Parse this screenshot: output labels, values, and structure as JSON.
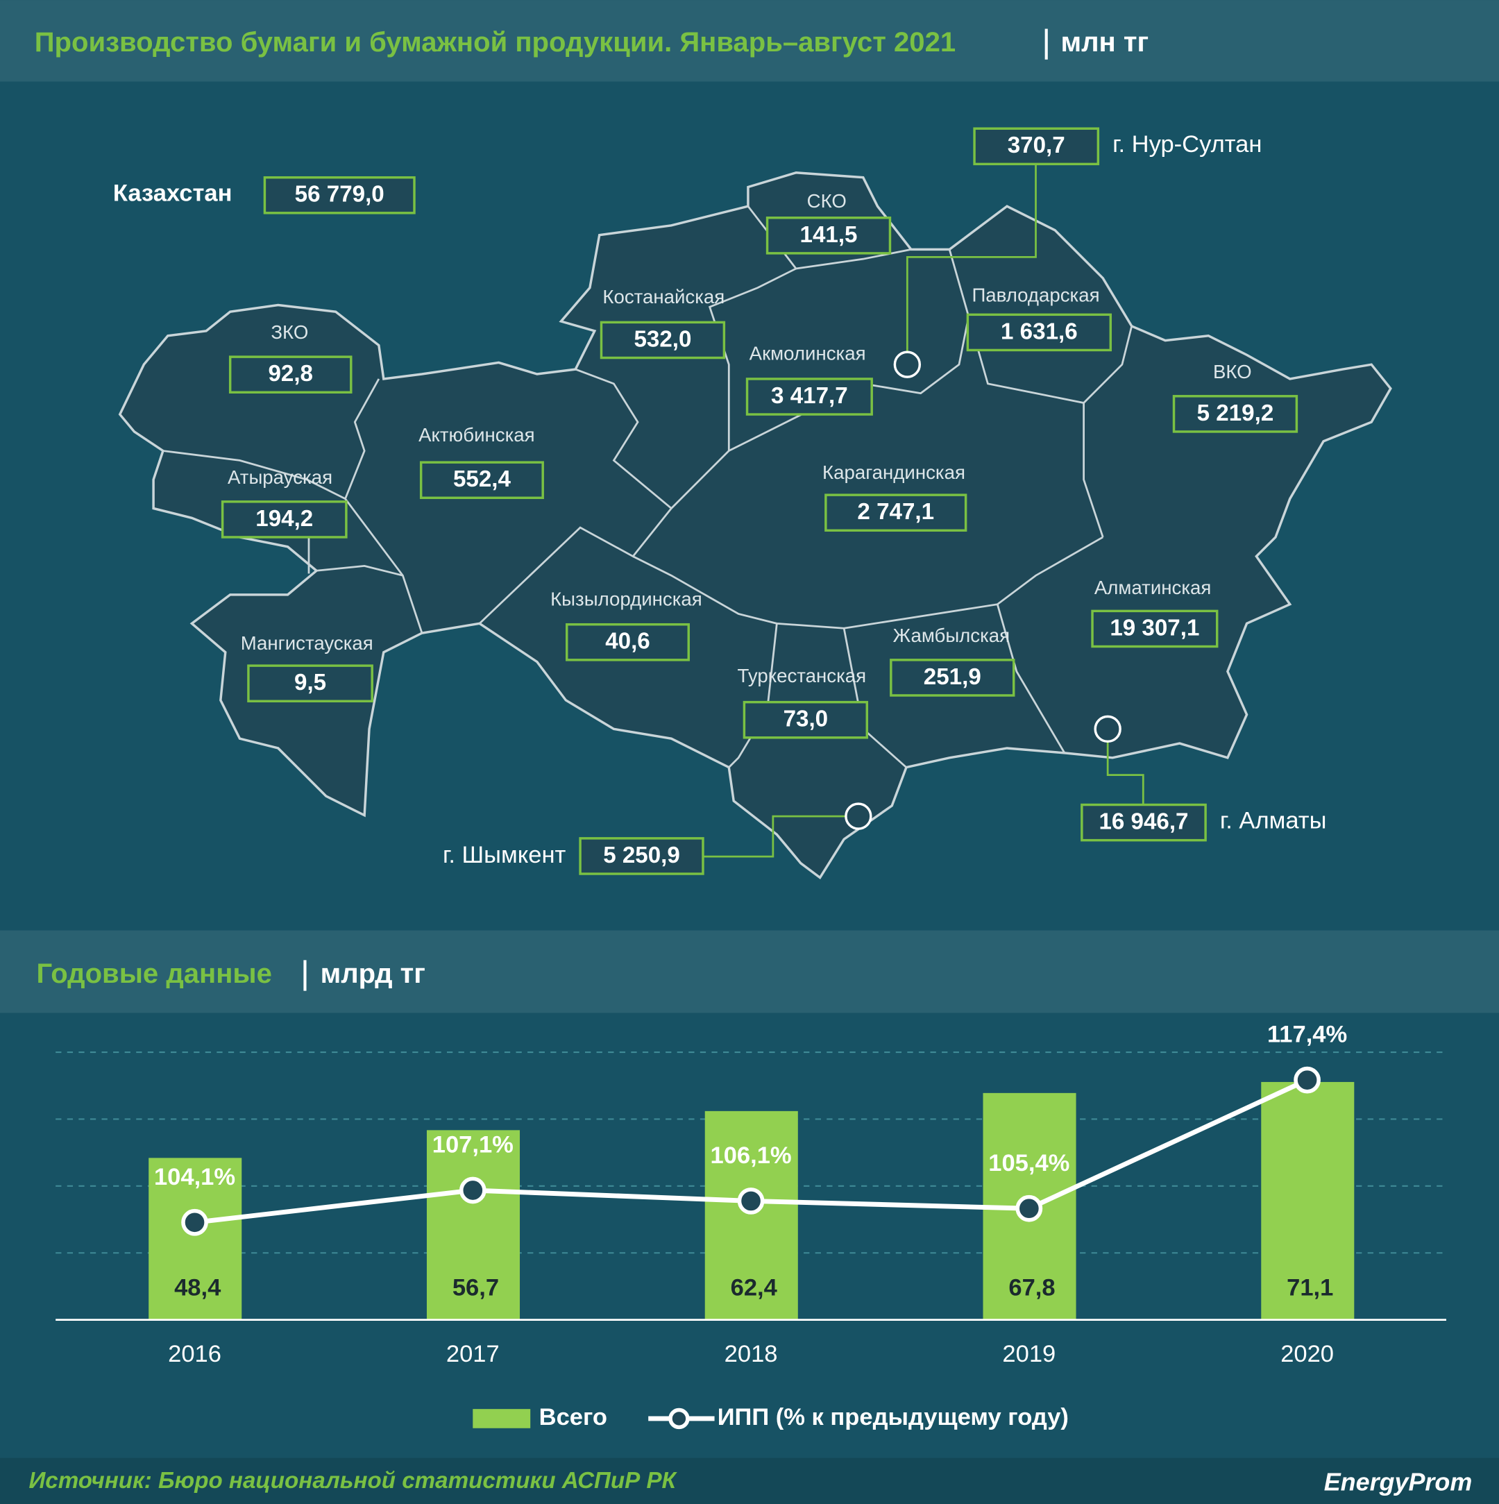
{
  "header": {
    "title": "Производство бумаги и бумажной продукции. Январь–август 2021",
    "unit": "млн тг"
  },
  "map": {
    "regions": [
      {
        "name": "Казахстан",
        "value": "56 779,0"
      },
      {
        "name": "г. Нур-Султан",
        "value": "370,7"
      },
      {
        "name": "СКО",
        "value": "141,5"
      },
      {
        "name": "Костанайская",
        "value": "532,0"
      },
      {
        "name": "Павлодарская",
        "value": "1 631,6"
      },
      {
        "name": "ЗКО",
        "value": "92,8"
      },
      {
        "name": "Акмолинская",
        "value": "3 417,7"
      },
      {
        "name": "ВКО",
        "value": "5 219,2"
      },
      {
        "name": "Актюбинская",
        "value": "552,4"
      },
      {
        "name": "Атырауская",
        "value": "194,2"
      },
      {
        "name": "Карагандинская",
        "value": "2 747,1"
      },
      {
        "name": "Кызылординская",
        "value": "40,6"
      },
      {
        "name": "Алматинская",
        "value": "19 307,1"
      },
      {
        "name": "Мангистауская",
        "value": "9,5"
      },
      {
        "name": "Жамбылская",
        "value": "251,9"
      },
      {
        "name": "Туркестанская",
        "value": "73,0"
      },
      {
        "name": "г. Алматы",
        "value": "16 946,7"
      },
      {
        "name": "г. Шымкент",
        "value": "5 250,9"
      }
    ]
  },
  "chart_data": {
    "type": "bar",
    "title": "Годовые данные",
    "unit": "млрд тг",
    "categories": [
      "2016",
      "2017",
      "2018",
      "2019",
      "2020"
    ],
    "series": [
      {
        "name": "Всего",
        "type": "bar",
        "color": "#92d050",
        "values": [
          48.4,
          56.7,
          62.4,
          67.8,
          71.1
        ],
        "value_labels": [
          "48,4",
          "56,7",
          "62,4",
          "67,8",
          "71,1"
        ]
      },
      {
        "name": "ИПП (% к предыдущему году)",
        "type": "line",
        "axis": "y2",
        "color": "#ffffff",
        "values": [
          104.1,
          107.1,
          106.1,
          105.4,
          117.4
        ],
        "value_labels": [
          "104,1%",
          "107,1%",
          "106,1%",
          "105,4%",
          "117,4%"
        ]
      }
    ],
    "ylim": [
      0,
      80
    ],
    "y2lim": [
      95,
      120
    ],
    "grid": true
  },
  "footer": {
    "source": "Источник: Бюро национальной статистики АСПиР РК",
    "logo": "EnergyProm"
  }
}
